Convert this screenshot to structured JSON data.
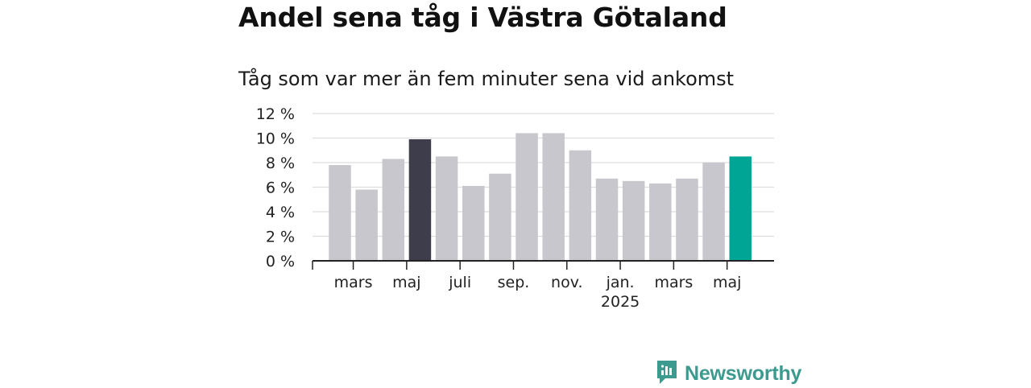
{
  "title": "Andel sena tåg i Västra Götaland",
  "subtitle": "Tåg som var mer än fem minuter sena vid ankomst",
  "brand": {
    "name": "Newsworthy",
    "color": "#3c9a8e",
    "icon": "newsworthy-logo-icon"
  },
  "colors": {
    "default_bar": "#c8c7cd",
    "highlight_bar": "#3e3d4b",
    "latest_bar": "#00a595",
    "grid": "#dddddd",
    "axis": "#222222"
  },
  "chart_data": {
    "type": "bar",
    "categories": [
      "2024-02",
      "2024-03",
      "2024-04",
      "2024-05",
      "2024-06",
      "2024-07",
      "2024-08",
      "2024-09",
      "2024-10",
      "2024-11",
      "2024-12",
      "2025-01",
      "2025-02",
      "2025-03",
      "2025-04",
      "2025-05"
    ],
    "values": [
      7.8,
      5.8,
      8.3,
      9.9,
      8.5,
      6.1,
      7.1,
      10.4,
      10.4,
      9.0,
      6.7,
      6.5,
      6.3,
      6.7,
      8.0,
      8.5
    ],
    "highlight": {
      "2024-05": "highlight",
      "2025-05": "latest"
    },
    "ylim": [
      0,
      12
    ],
    "yticks": [
      {
        "value": 0,
        "label": "0 %"
      },
      {
        "value": 2,
        "label": "2 %"
      },
      {
        "value": 4,
        "label": "4 %"
      },
      {
        "value": 6,
        "label": "6 %"
      },
      {
        "value": 8,
        "label": "8 %"
      },
      {
        "value": 10,
        "label": "10 %"
      },
      {
        "value": 12,
        "label": "12 %"
      }
    ],
    "xticks": [
      {
        "index": 1,
        "label": "mars"
      },
      {
        "index": 3,
        "label": "maj"
      },
      {
        "index": 5,
        "label": "juli"
      },
      {
        "index": 7,
        "label": "sep."
      },
      {
        "index": 9,
        "label": "nov."
      },
      {
        "index": 11,
        "label": "jan.",
        "sublabel": "2025"
      },
      {
        "index": 13,
        "label": "mars"
      },
      {
        "index": 15,
        "label": "maj"
      }
    ],
    "grid": true,
    "legend": "none"
  }
}
